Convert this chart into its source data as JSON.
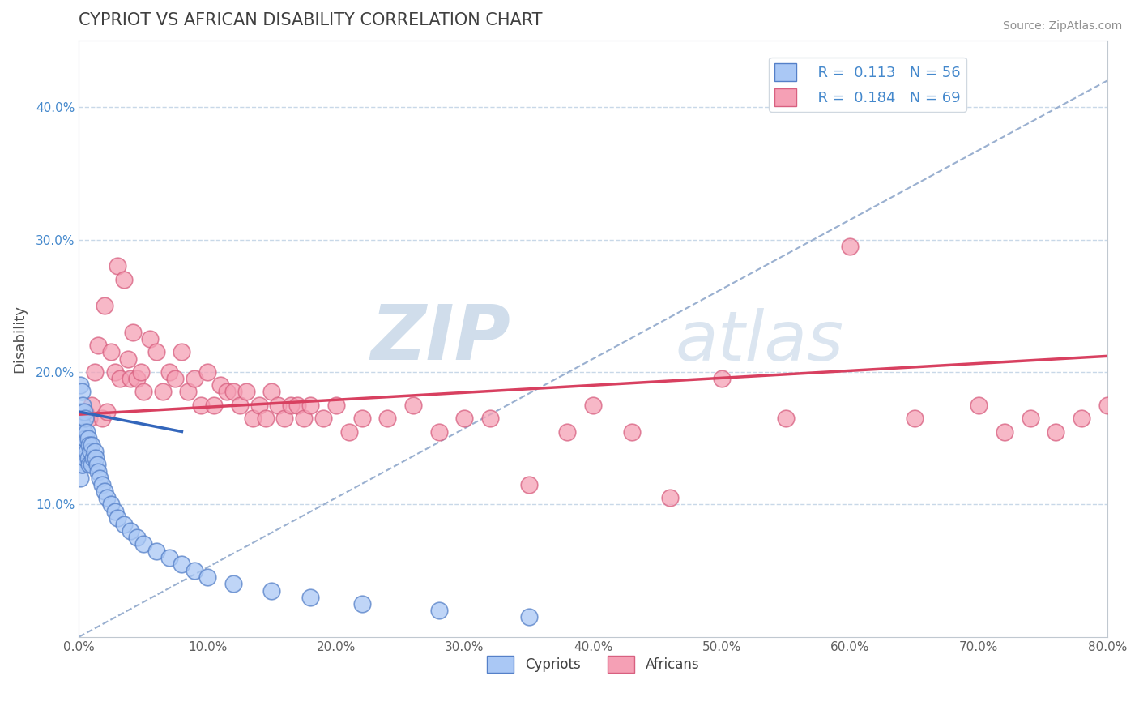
{
  "title": "CYPRIOT VS AFRICAN DISABILITY CORRELATION CHART",
  "source": "Source: ZipAtlas.com",
  "ylabel": "Disability",
  "xlabel": "",
  "xlim": [
    0.0,
    0.8
  ],
  "ylim": [
    0.0,
    0.45
  ],
  "xticks": [
    0.0,
    0.1,
    0.2,
    0.3,
    0.4,
    0.5,
    0.6,
    0.7,
    0.8
  ],
  "yticks": [
    0.0,
    0.1,
    0.2,
    0.3,
    0.4
  ],
  "xtick_labels": [
    "0.0%",
    "10.0%",
    "20.0%",
    "30.0%",
    "40.0%",
    "50.0%",
    "60.0%",
    "70.0%",
    "80.0%"
  ],
  "ytick_labels": [
    "",
    "10.0%",
    "20.0%",
    "30.0%",
    "40.0%"
  ],
  "cypriot_color": "#aac8f5",
  "african_color": "#f5a0b5",
  "cypriot_edge": "#5580c8",
  "african_edge": "#d86080",
  "legend_R1": "0.113",
  "legend_N1": "56",
  "legend_R2": "0.184",
  "legend_N2": "69",
  "watermark_zip": "ZIP",
  "watermark_atlas": "atlas",
  "background_color": "#ffffff",
  "grid_color": "#c8d8e8",
  "cypriot_x": [
    0.001,
    0.001,
    0.001,
    0.001,
    0.001,
    0.002,
    0.002,
    0.002,
    0.002,
    0.002,
    0.003,
    0.003,
    0.003,
    0.003,
    0.004,
    0.004,
    0.004,
    0.005,
    0.005,
    0.005,
    0.006,
    0.006,
    0.007,
    0.007,
    0.008,
    0.008,
    0.009,
    0.01,
    0.01,
    0.011,
    0.012,
    0.013,
    0.014,
    0.015,
    0.016,
    0.018,
    0.02,
    0.022,
    0.025,
    0.028,
    0.03,
    0.035,
    0.04,
    0.045,
    0.05,
    0.06,
    0.07,
    0.08,
    0.09,
    0.1,
    0.12,
    0.15,
    0.18,
    0.22,
    0.28,
    0.35
  ],
  "cypriot_y": [
    0.19,
    0.17,
    0.155,
    0.14,
    0.12,
    0.185,
    0.17,
    0.16,
    0.145,
    0.13,
    0.175,
    0.16,
    0.145,
    0.13,
    0.17,
    0.155,
    0.14,
    0.165,
    0.15,
    0.135,
    0.155,
    0.14,
    0.15,
    0.135,
    0.145,
    0.13,
    0.14,
    0.145,
    0.13,
    0.135,
    0.14,
    0.135,
    0.13,
    0.125,
    0.12,
    0.115,
    0.11,
    0.105,
    0.1,
    0.095,
    0.09,
    0.085,
    0.08,
    0.075,
    0.07,
    0.065,
    0.06,
    0.055,
    0.05,
    0.045,
    0.04,
    0.035,
    0.03,
    0.025,
    0.02,
    0.015
  ],
  "african_x": [
    0.005,
    0.008,
    0.01,
    0.012,
    0.015,
    0.018,
    0.02,
    0.022,
    0.025,
    0.028,
    0.03,
    0.032,
    0.035,
    0.038,
    0.04,
    0.042,
    0.045,
    0.048,
    0.05,
    0.055,
    0.06,
    0.065,
    0.07,
    0.075,
    0.08,
    0.085,
    0.09,
    0.095,
    0.1,
    0.105,
    0.11,
    0.115,
    0.12,
    0.125,
    0.13,
    0.135,
    0.14,
    0.145,
    0.15,
    0.155,
    0.16,
    0.165,
    0.17,
    0.175,
    0.18,
    0.19,
    0.2,
    0.21,
    0.22,
    0.24,
    0.26,
    0.28,
    0.3,
    0.32,
    0.35,
    0.38,
    0.4,
    0.43,
    0.46,
    0.5,
    0.55,
    0.6,
    0.65,
    0.7,
    0.72,
    0.74,
    0.76,
    0.78,
    0.8
  ],
  "african_y": [
    0.17,
    0.165,
    0.175,
    0.2,
    0.22,
    0.165,
    0.25,
    0.17,
    0.215,
    0.2,
    0.28,
    0.195,
    0.27,
    0.21,
    0.195,
    0.23,
    0.195,
    0.2,
    0.185,
    0.225,
    0.215,
    0.185,
    0.2,
    0.195,
    0.215,
    0.185,
    0.195,
    0.175,
    0.2,
    0.175,
    0.19,
    0.185,
    0.185,
    0.175,
    0.185,
    0.165,
    0.175,
    0.165,
    0.185,
    0.175,
    0.165,
    0.175,
    0.175,
    0.165,
    0.175,
    0.165,
    0.175,
    0.155,
    0.165,
    0.165,
    0.175,
    0.155,
    0.165,
    0.165,
    0.115,
    0.155,
    0.175,
    0.155,
    0.105,
    0.195,
    0.165,
    0.295,
    0.165,
    0.175,
    0.155,
    0.165,
    0.155,
    0.165,
    0.175
  ]
}
